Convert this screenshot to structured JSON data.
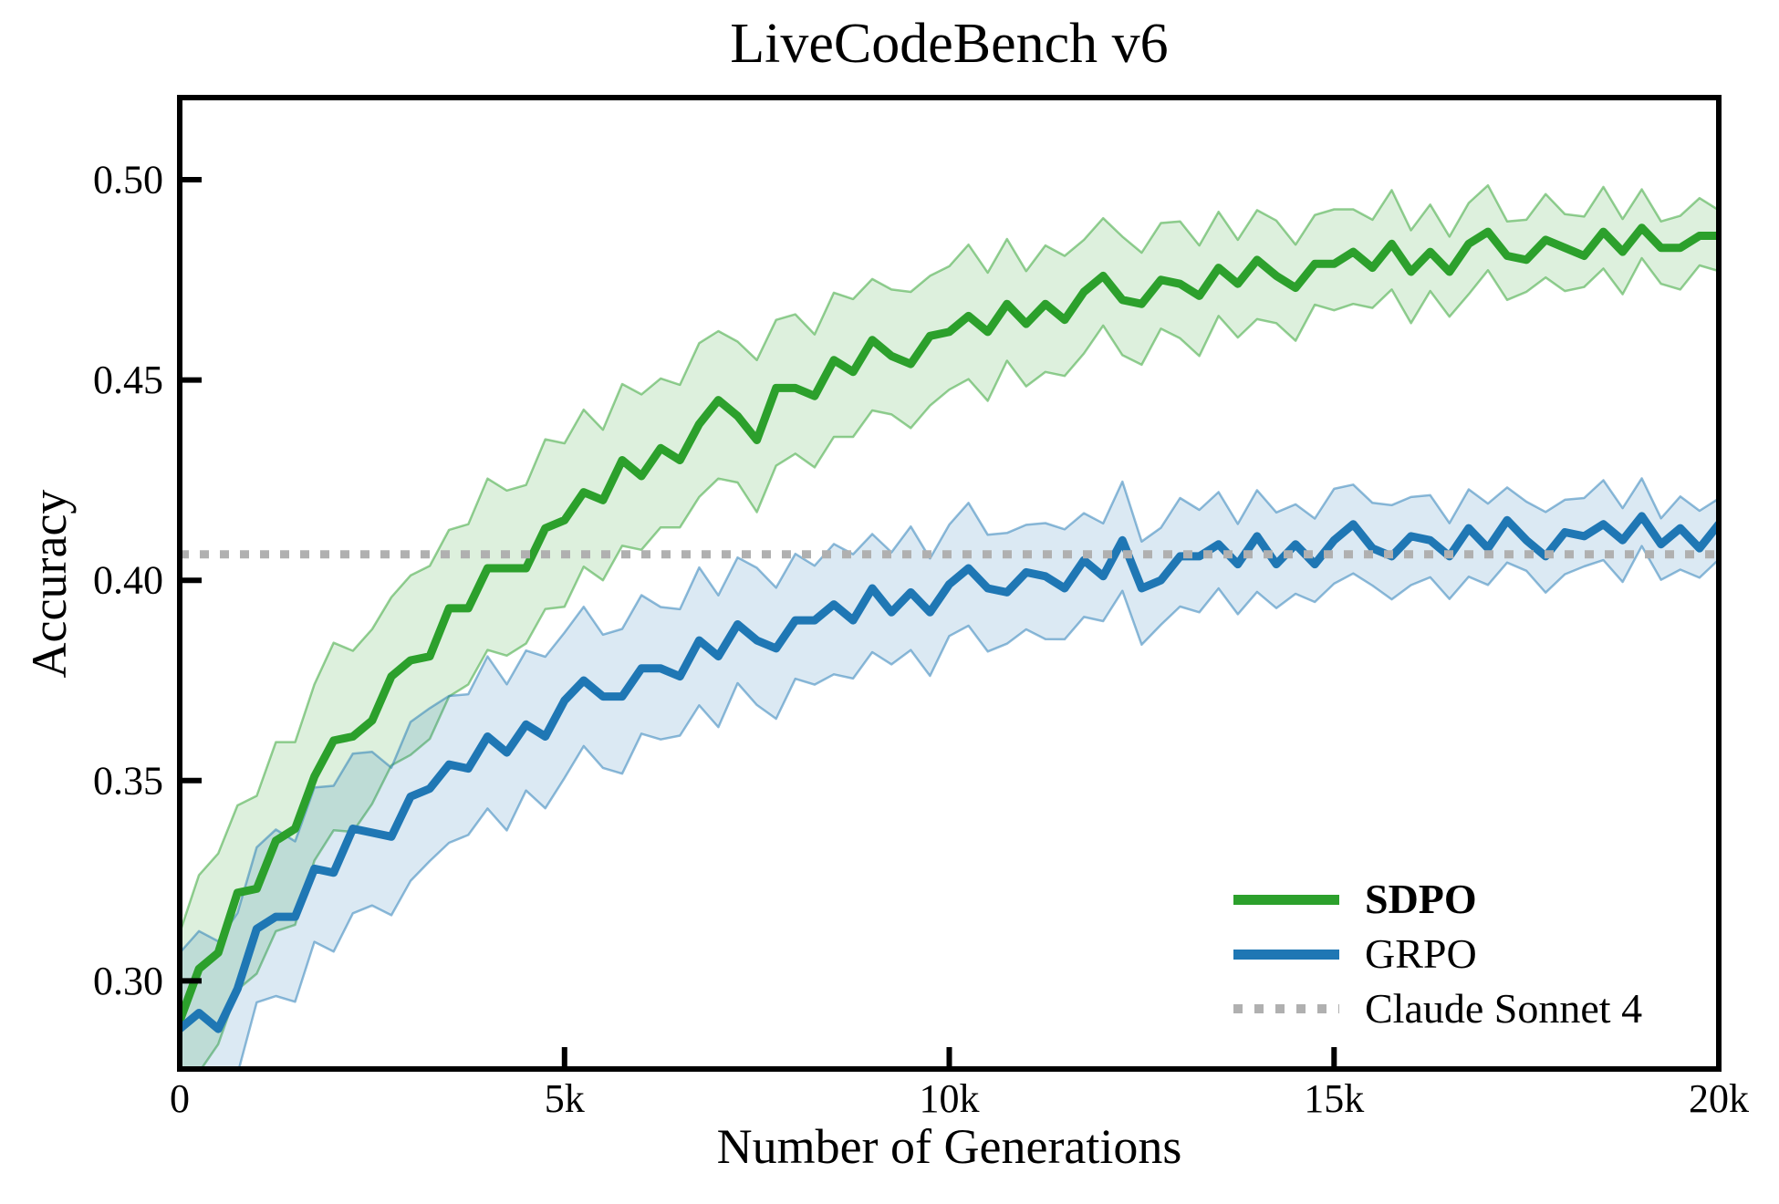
{
  "figure": {
    "title": "LiveCodeBench v6",
    "xlabel": "Number of Generations",
    "ylabel": "Accuracy",
    "background": "#ffffff",
    "spine_color": "#000000"
  },
  "legend": {
    "position": "lower right",
    "items": [
      {
        "label": "SDPO",
        "color": "#2ca02c",
        "style": "solid",
        "bold": true
      },
      {
        "label": "GRPO",
        "color": "#1f77b4",
        "style": "solid",
        "bold": false
      },
      {
        "label": "Claude Sonnet 4",
        "color": "#b0b0b0",
        "style": "dotted",
        "bold": false
      }
    ]
  },
  "chart_data": {
    "type": "line",
    "title": "LiveCodeBench v6",
    "xlabel": "Number of Generations",
    "ylabel": "Accuracy",
    "xlim": [
      0,
      20000
    ],
    "ylim": [
      0.278,
      0.5205
    ],
    "grid": false,
    "ticks_direction": "in",
    "legend_position": "lower right",
    "xticks": {
      "values": [
        0,
        5000,
        10000,
        15000,
        20000
      ],
      "labels": [
        "0",
        "5k",
        "10k",
        "15k",
        "20k"
      ]
    },
    "yticks": {
      "values": [
        0.3,
        0.35,
        0.4,
        0.45,
        0.5
      ],
      "labels": [
        "0.30",
        "0.35",
        "0.40",
        "0.45",
        "0.50"
      ]
    },
    "x_start": 0,
    "x_step": 250,
    "series": [
      {
        "name": "SDPO",
        "color": "#2ca02c",
        "line_width": 9,
        "band": {
          "start": 0.024,
          "end": 0.008,
          "fill_opacity": 0.16,
          "edge_opacity": 0.5
        },
        "values": [
          0.29,
          0.303,
          0.307,
          0.322,
          0.323,
          0.335,
          0.338,
          0.351,
          0.36,
          0.361,
          0.365,
          0.376,
          0.38,
          0.381,
          0.393,
          0.393,
          0.403,
          0.403,
          0.403,
          0.413,
          0.415,
          0.422,
          0.42,
          0.43,
          0.426,
          0.433,
          0.43,
          0.439,
          0.445,
          0.441,
          0.435,
          0.448,
          0.448,
          0.446,
          0.455,
          0.452,
          0.46,
          0.456,
          0.454,
          0.461,
          0.462,
          0.466,
          0.462,
          0.469,
          0.464,
          0.469,
          0.465,
          0.472,
          0.476,
          0.47,
          0.469,
          0.475,
          0.474,
          0.471,
          0.478,
          0.474,
          0.48,
          0.476,
          0.473,
          0.479,
          0.479,
          0.482,
          0.478,
          0.484,
          0.477,
          0.482,
          0.477,
          0.484,
          0.487,
          0.481,
          0.48,
          0.485,
          0.483,
          0.481,
          0.487,
          0.482,
          0.488,
          0.483,
          0.483,
          0.486,
          0.486
        ]
      },
      {
        "name": "GRPO",
        "color": "#1f77b4",
        "line_width": 9,
        "band": {
          "start": 0.021,
          "end": 0.008,
          "fill_opacity": 0.16,
          "edge_opacity": 0.5
        },
        "values": [
          0.288,
          0.292,
          0.288,
          0.298,
          0.313,
          0.316,
          0.316,
          0.328,
          0.327,
          0.338,
          0.337,
          0.336,
          0.346,
          0.348,
          0.354,
          0.353,
          0.361,
          0.357,
          0.364,
          0.361,
          0.37,
          0.375,
          0.371,
          0.371,
          0.378,
          0.378,
          0.376,
          0.385,
          0.381,
          0.389,
          0.385,
          0.383,
          0.39,
          0.39,
          0.394,
          0.39,
          0.398,
          0.392,
          0.397,
          0.392,
          0.399,
          0.403,
          0.398,
          0.397,
          0.402,
          0.401,
          0.398,
          0.405,
          0.401,
          0.41,
          0.398,
          0.4,
          0.406,
          0.406,
          0.409,
          0.404,
          0.411,
          0.404,
          0.409,
          0.404,
          0.41,
          0.414,
          0.408,
          0.406,
          0.411,
          0.41,
          0.406,
          0.413,
          0.408,
          0.415,
          0.41,
          0.406,
          0.412,
          0.411,
          0.414,
          0.41,
          0.416,
          0.409,
          0.413,
          0.408,
          0.414
        ]
      }
    ],
    "baseline": {
      "name": "Claude Sonnet 4",
      "value": 0.4065,
      "color": "#b0b0b0",
      "style": "dotted",
      "line_width": 9
    }
  }
}
